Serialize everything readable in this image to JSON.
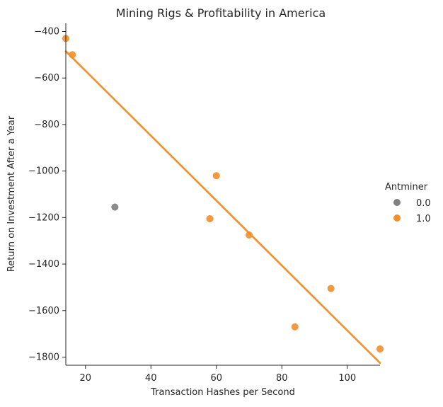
{
  "chart_data": {
    "type": "scatter",
    "title": "Mining Rigs & Profitability in America",
    "xlabel": "Transaction Hashes per Second",
    "ylabel": "Return on Investment After a Year",
    "xlim": [
      14,
      110
    ],
    "ylim": [
      -1835,
      -365
    ],
    "xticks": [
      20,
      40,
      60,
      80,
      100
    ],
    "yticks": [
      -400,
      -600,
      -800,
      -1000,
      -1200,
      -1400,
      -1600,
      -1800
    ],
    "tick_labels": {
      "x": [
        "20",
        "40",
        "60",
        "80",
        "100"
      ],
      "y": [
        "−400",
        "−600",
        "−800",
        "−1000",
        "−1200",
        "−1400",
        "−1600",
        "−1800"
      ]
    },
    "legend": {
      "title": "Antminer",
      "placement": "right",
      "entries": [
        {
          "label": "0.0",
          "color": "#808080"
        },
        {
          "label": "1.0",
          "color": "#F28E2B"
        }
      ]
    },
    "series": [
      {
        "name": "0.0",
        "color": "#808080",
        "points": [
          {
            "x": 29,
            "y": -1155
          }
        ]
      },
      {
        "name": "1.0",
        "color": "#F28E2B",
        "points": [
          {
            "x": 14,
            "y": -430
          },
          {
            "x": 16,
            "y": -500
          },
          {
            "x": 58,
            "y": -1205
          },
          {
            "x": 60,
            "y": -1020
          },
          {
            "x": 70,
            "y": -1275
          },
          {
            "x": 84,
            "y": -1670
          },
          {
            "x": 95,
            "y": -1505
          },
          {
            "x": 110,
            "y": -1765
          }
        ]
      }
    ],
    "regression": {
      "series": "1.0",
      "color": "#F28E2B",
      "x": [
        14,
        110
      ],
      "y": [
        -485,
        -1825
      ]
    },
    "grid": false
  }
}
